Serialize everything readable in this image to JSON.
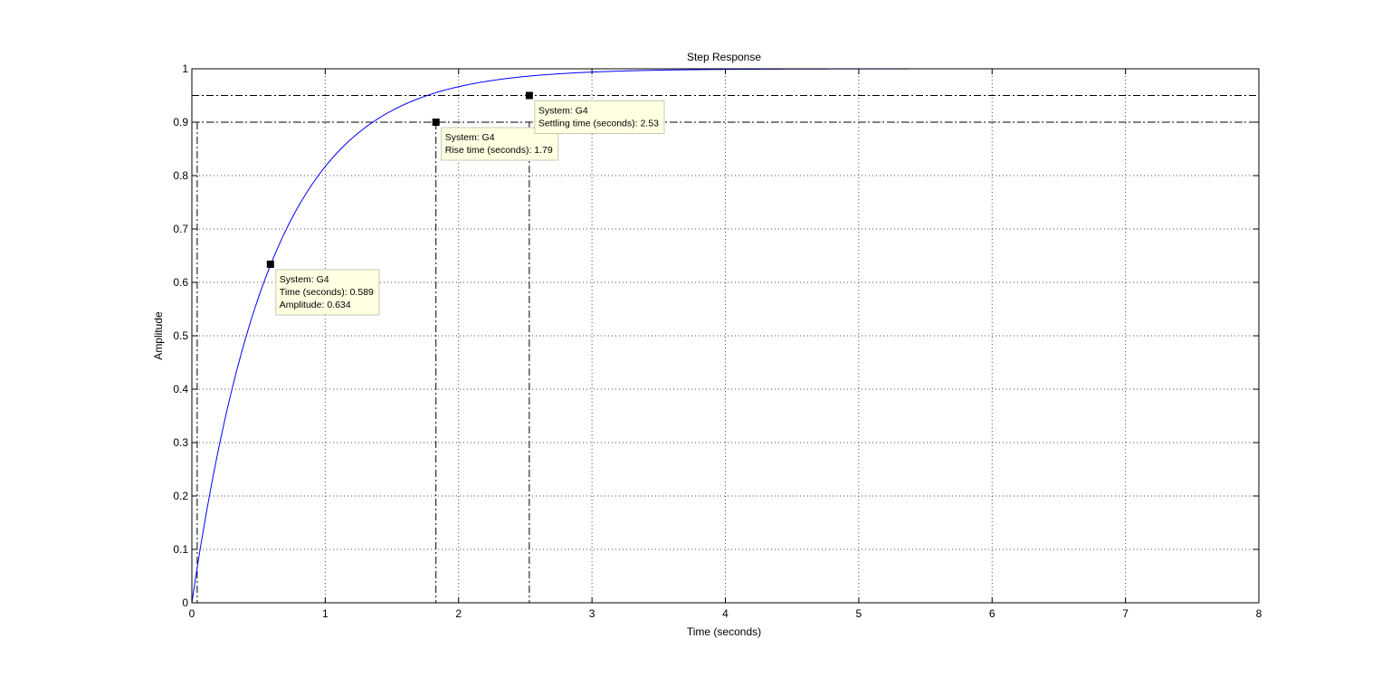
{
  "chart_data": {
    "type": "line",
    "title": "Step Response",
    "xlabel": "Time (seconds)",
    "ylabel": "Amplitude",
    "xlim": [
      0,
      8
    ],
    "ylim": [
      0,
      1
    ],
    "x_ticks": [
      0,
      1,
      2,
      3,
      4,
      5,
      6,
      7,
      8
    ],
    "y_ticks": [
      0,
      0.1,
      0.2,
      0.3,
      0.4,
      0.5,
      0.6,
      0.7,
      0.8,
      0.9,
      1
    ],
    "grid": true,
    "line_color": "#0000ff",
    "series": [
      {
        "model": "first-order step response",
        "time_constant": 0.589,
        "x_range": [
          0,
          5.92
        ]
      }
    ],
    "reference_lines": {
      "horizontal": [
        0.9,
        0.95
      ],
      "vertical": [
        0.04,
        1.83,
        2.53
      ]
    },
    "markers": [
      {
        "x": 0.589,
        "y": 0.634
      },
      {
        "x": 1.83,
        "y": 0.9
      },
      {
        "x": 2.53,
        "y": 0.95
      }
    ],
    "datatips": [
      {
        "anchor": 0,
        "lines": [
          "System: G4",
          "Time (seconds): 0.589",
          "Amplitude: 0.634"
        ]
      },
      {
        "anchor": 1,
        "lines": [
          "System: G4",
          "Rise time (seconds): 1.79"
        ]
      },
      {
        "anchor": 2,
        "lines": [
          "System: G4",
          "Settling time (seconds): 2.53"
        ]
      }
    ]
  }
}
